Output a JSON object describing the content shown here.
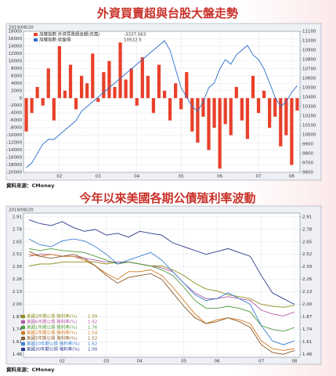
{
  "chart_data": [
    {
      "type": "bar",
      "title": "外資買賣超與台股大盤走勢",
      "date": "2019/08/20",
      "source": "資料來源：CMoney",
      "categories": [
        null,
        null,
        null,
        null,
        null,
        null,
        "02",
        null,
        null,
        null,
        null,
        null,
        null,
        "03",
        null,
        null,
        null,
        null,
        null,
        null,
        "04",
        null,
        null,
        null,
        null,
        null,
        null,
        null,
        "05",
        null,
        null,
        null,
        null,
        null,
        null,
        "06",
        null,
        null,
        null,
        null,
        null,
        null,
        "07",
        null,
        null,
        null,
        null,
        null,
        "08",
        null
      ],
      "ylim": [
        -20000,
        18000
      ],
      "yticks": [
        -20000,
        -18000,
        -16000,
        -14000,
        -12000,
        -10000,
        -8000,
        -6000,
        -4000,
        -2000,
        0,
        2000,
        4000,
        6000,
        8000,
        10000,
        12000,
        14000,
        16000,
        18000
      ],
      "y2lim": [
        9600,
        11100
      ],
      "y2ticks": [
        9600,
        9700,
        9800,
        9900,
        10000,
        10100,
        10200,
        10300,
        10400,
        10500,
        10600,
        10700,
        10800,
        10900,
        11000,
        11100
      ],
      "grid": true,
      "series": [
        {
          "name": "加權指數:外資買賣超金額(百萬)",
          "legend_value": "-3337.563",
          "type": "bar",
          "color": "#e8402a",
          "values": [
            -9000,
            -4000,
            3000,
            -2000,
            8000,
            -6000,
            14000,
            2000,
            9000,
            -3000,
            6000,
            4000,
            12000,
            -1000,
            7000,
            10000,
            3000,
            15000,
            5000,
            8000,
            -2000,
            11000,
            6000,
            -4000,
            9000,
            2000,
            -6000,
            4000,
            -3000,
            7000,
            -9000,
            -12000,
            -5000,
            -14000,
            -8000,
            -19000,
            -7000,
            -10000,
            3000,
            -6000,
            -11000,
            6000,
            -4000,
            2000,
            -8000,
            -5000,
            -13000,
            -10000,
            -18000,
            -3337.563
          ]
        },
        {
          "name": "加權指數:收盤價",
          "legend_value": "10522.5",
          "type": "line",
          "axis": "y2",
          "color": "#2a6fc9",
          "values": [
            9650,
            9700,
            9800,
            9900,
            9950,
            9950,
            10000,
            10050,
            10100,
            10150,
            10250,
            10300,
            10350,
            10400,
            10450,
            10500,
            10550,
            10600,
            10650,
            10700,
            10750,
            10800,
            10850,
            10900,
            10950,
            11000,
            10900,
            10700,
            10500,
            10400,
            10300,
            10250,
            10350,
            10500,
            10550,
            10700,
            10800,
            10750,
            10850,
            10900,
            10950,
            10850,
            10800,
            10700,
            10550,
            10400,
            10300,
            10350,
            10450,
            10522.5
          ]
        }
      ]
    },
    {
      "type": "line",
      "title": "今年以來美國各期公債殖利率波動",
      "date": "2019/08/20",
      "source": "資料來源：CMoney",
      "categories": [
        null,
        null,
        null,
        "02",
        null,
        null,
        null,
        "03",
        null,
        null,
        "04",
        null,
        null,
        null,
        "05",
        null,
        null,
        "06",
        null,
        null,
        null,
        "07",
        null,
        null,
        "08"
      ],
      "ylim": [
        1.45,
        2.95
      ],
      "yticks": [
        {
          "value": 1.48,
          "label": "1.48"
        },
        1.61,
        1.74,
        1.87,
        {
          "value": 2,
          "label": "2.00"
        },
        2.13,
        2.26,
        2.39,
        2.52,
        2.65,
        2.78,
        2.91
      ],
      "y2lim": [
        1.45,
        2.95
      ],
      "y2ticks": [
        {
          "value": 1.48,
          "label": "1.48"
        },
        1.61,
        1.74,
        1.87,
        {
          "value": 2,
          "label": "2.00"
        },
        2.13,
        2.26,
        2.39,
        2.52,
        2.65,
        2.78,
        2.91
      ],
      "grid": true,
      "series": [
        {
          "name": "美國3月期公債 殖利率(%)",
          "legend_value": "1.99",
          "color": "#8f8f20",
          "values": [
            2.4,
            2.42,
            2.42,
            2.44,
            2.44,
            2.44,
            2.44,
            2.42,
            2.44,
            2.44,
            2.42,
            2.4,
            2.4,
            2.36,
            2.3,
            2.22,
            2.16,
            2.14,
            2.1,
            2.08,
            2.06,
            2.0,
            1.98,
            1.97,
            1.99
          ]
        },
        {
          "name": "美國6月期公債 殖利率(%)",
          "legend_value": "1.92",
          "color": "#b05aa0",
          "values": [
            2.5,
            2.52,
            2.52,
            2.5,
            2.5,
            2.48,
            2.46,
            2.44,
            2.44,
            2.44,
            2.42,
            2.4,
            2.38,
            2.34,
            2.22,
            2.12,
            2.06,
            2.06,
            2.08,
            2.06,
            2.04,
            1.94,
            1.9,
            1.88,
            1.92
          ]
        },
        {
          "name": "美國1年期公債 殖利率(%)",
          "legend_value": "1.76",
          "color": "#4f9a3a",
          "values": [
            2.58,
            2.56,
            2.58,
            2.56,
            2.55,
            2.54,
            2.5,
            2.46,
            2.42,
            2.44,
            2.42,
            2.4,
            2.36,
            2.3,
            2.18,
            2.04,
            1.96,
            1.96,
            1.98,
            1.96,
            1.92,
            1.78,
            1.74,
            1.72,
            1.76
          ]
        },
        {
          "name": "美國2年期公債 殖利率(%)",
          "legend_value": "1.54",
          "color": "#d07a20",
          "values": [
            2.52,
            2.5,
            2.52,
            2.5,
            2.5,
            2.46,
            2.4,
            2.32,
            2.26,
            2.34,
            2.34,
            2.36,
            2.3,
            2.18,
            2.04,
            1.9,
            1.8,
            1.84,
            1.86,
            1.84,
            1.8,
            1.62,
            1.54,
            1.52,
            1.54
          ]
        },
        {
          "name": "美國5年期公債 殖利率(%)",
          "legend_value": "1.52",
          "color": "#8a5a2a",
          "values": [
            2.55,
            2.5,
            2.48,
            2.5,
            2.52,
            2.48,
            2.4,
            2.3,
            2.22,
            2.28,
            2.3,
            2.32,
            2.26,
            2.12,
            1.98,
            1.86,
            1.8,
            1.82,
            1.86,
            1.82,
            1.76,
            1.58,
            1.5,
            1.48,
            1.52
          ]
        },
        {
          "name": "美國10年期公債 殖利率(%)",
          "legend_value": "1.62",
          "color": "#3b7fd0",
          "values": [
            2.68,
            2.62,
            2.6,
            2.66,
            2.68,
            2.66,
            2.6,
            2.52,
            2.42,
            2.46,
            2.5,
            2.54,
            2.46,
            2.34,
            2.22,
            2.1,
            2.04,
            2.06,
            2.12,
            2.06,
            2.0,
            1.78,
            1.62,
            1.58,
            1.62
          ]
        },
        {
          "name": "美國30年期公債 殖利率(%)",
          "legend_value": "2.00",
          "color": "#2a3a8a",
          "values": [
            2.88,
            2.84,
            2.82,
            2.86,
            2.8,
            2.76,
            2.78,
            2.72,
            2.74,
            2.7,
            2.76,
            2.74,
            2.72,
            2.64,
            2.6,
            2.56,
            2.52,
            2.55,
            2.58,
            2.54,
            2.5,
            2.3,
            2.12,
            2.06,
            2.0
          ]
        }
      ]
    }
  ]
}
